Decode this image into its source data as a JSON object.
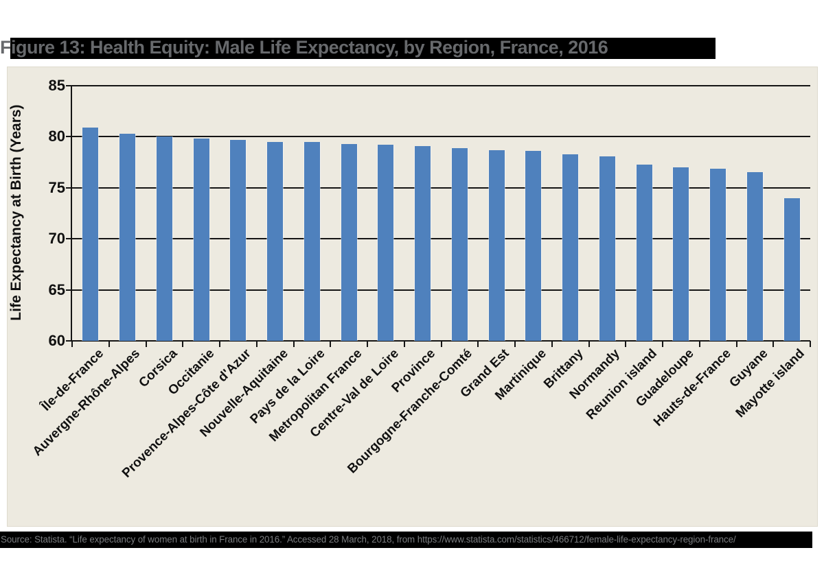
{
  "page": {
    "title": "Figure 13: Health Equity: Male Life Expectancy, by Region, France, 2016",
    "source_line": "Source: Statista. “Life expectancy of women at birth in France in 2016.” Accessed 28 March, 2018, from https://www.statista.com/statistics/466712/female-life-expectancy-region-france/"
  },
  "colors": {
    "bar": "#4F81BD",
    "panel_bg": "#EDEAE0",
    "title_bg": "#000000",
    "title_fg": "#67696C",
    "source_fg": "#7B7D80",
    "axis": "#141414"
  },
  "chart_data": {
    "type": "bar",
    "title": "Figure 13: Health Equity: Male Life Expectancy, by Region, France, 2016",
    "categories": [
      "Île-de-France",
      "Auvergne-Rhône-Alpes",
      "Corsica",
      "Occitanie",
      "Provence-Alpes-Côte d'Azur",
      "Nouvelle-Aquitaine",
      "Pays de la Loire",
      "Metropolitan France",
      "Centre-Val de Loire",
      "Province",
      "Bourgogne-Franche-Comté",
      "Grand Est",
      "Martinique",
      "Brittany",
      "Normandy",
      "Reunion island",
      "Guadeloupe",
      "Hauts-de-France",
      "Guyane",
      "Mayotte island"
    ],
    "values": [
      80.9,
      80.3,
      80.0,
      79.8,
      79.7,
      79.5,
      79.5,
      79.3,
      79.2,
      79.1,
      78.9,
      78.7,
      78.6,
      78.3,
      78.1,
      77.3,
      77.0,
      76.9,
      76.5,
      74.0
    ],
    "xlabel": "",
    "ylabel": "Life Expectancy at Birth (Years)",
    "ylim": [
      60,
      85
    ],
    "yticks": [
      60,
      65,
      70,
      75,
      80,
      85
    ],
    "grid": true,
    "legend": false,
    "bar_color": "#4F81BD",
    "x_label_rotation_deg": 45
  }
}
